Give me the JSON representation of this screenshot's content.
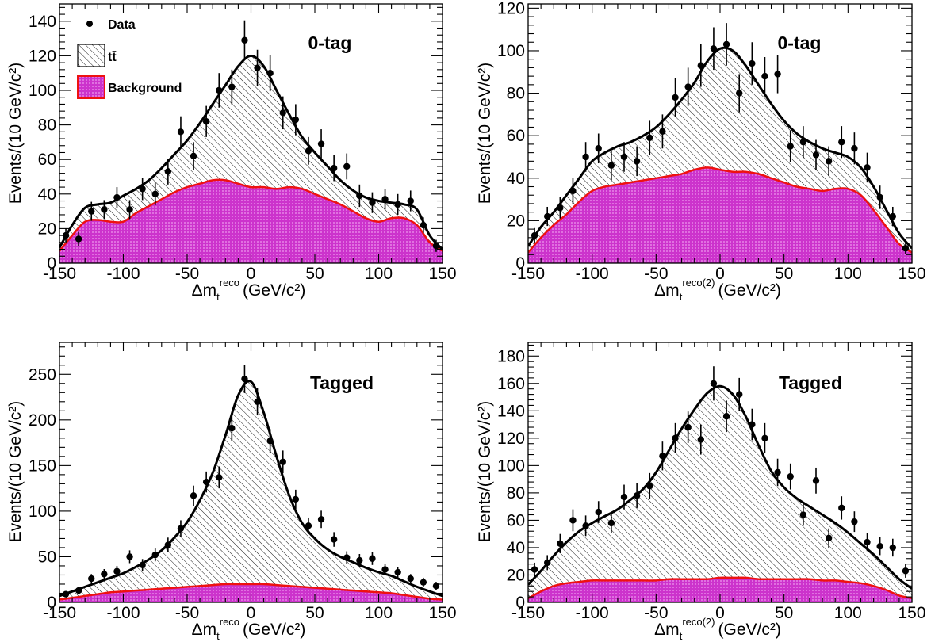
{
  "legend": {
    "data_label": "Data",
    "signal_label": "tt̄",
    "background_label": "Background"
  },
  "colors": {
    "background_fill": "#cc33cc",
    "background_line": "#ee1111",
    "signal_line": "#000000",
    "hatch": "#000000"
  },
  "chart_data": [
    {
      "type": "scatter",
      "panel": "top-left",
      "tag": "0-tag",
      "ylabel": "Events/(10 GeV/c²)",
      "xlabel_main": "Δm",
      "xlabel_sub": "t",
      "xlabel_sup": "reco",
      "xlabel_unit": "(GeV/c²)",
      "xlim": [
        -150,
        150
      ],
      "ylim": [
        0,
        150
      ],
      "xticks": [
        -150,
        -100,
        -50,
        0,
        50,
        100,
        150
      ],
      "yticks": [
        0,
        20,
        40,
        60,
        80,
        100,
        120,
        140
      ],
      "legend_position": "top-left",
      "data": {
        "x": [
          -145,
          -135,
          -125,
          -115,
          -105,
          -95,
          -85,
          -75,
          -65,
          -55,
          -45,
          -35,
          -25,
          -15,
          -5,
          5,
          15,
          25,
          35,
          45,
          55,
          65,
          75,
          85,
          95,
          105,
          115,
          125,
          135,
          145
        ],
        "y": [
          16,
          14,
          30,
          31,
          38,
          31,
          43,
          40,
          53,
          76,
          62,
          82,
          100,
          102,
          129,
          113,
          110,
          87,
          83,
          65,
          69,
          55,
          56,
          39,
          35,
          37,
          34,
          36,
          22,
          10
        ],
        "yerr": [
          4,
          4,
          5.5,
          5.5,
          6,
          5.5,
          6.5,
          6.5,
          7.5,
          9,
          8,
          9,
          10,
          10,
          11.5,
          10.5,
          10.5,
          9.5,
          9,
          8,
          8.5,
          7.5,
          7.5,
          6.5,
          6,
          6,
          6,
          6,
          4.5,
          3.5
        ]
      },
      "total_curve": {
        "x": [
          -150,
          -140,
          -130,
          -120,
          -110,
          -100,
          -90,
          -80,
          -70,
          -60,
          -50,
          -40,
          -30,
          -20,
          -10,
          0,
          10,
          20,
          30,
          40,
          50,
          60,
          70,
          80,
          90,
          100,
          110,
          120,
          130,
          140,
          150
        ],
        "y": [
          9,
          22,
          32,
          34,
          35,
          39,
          43,
          48,
          55,
          63,
          71,
          81,
          92,
          103,
          114,
          120,
          114,
          100,
          86,
          73,
          64,
          56,
          48,
          42,
          38,
          36,
          35,
          34,
          31,
          16,
          8
        ]
      },
      "background_curve": {
        "x": [
          -150,
          -140,
          -130,
          -120,
          -110,
          -100,
          -90,
          -80,
          -70,
          -60,
          -50,
          -40,
          -30,
          -20,
          -10,
          0,
          10,
          20,
          30,
          40,
          50,
          60,
          70,
          80,
          90,
          100,
          110,
          120,
          130,
          140,
          150
        ],
        "y": [
          7,
          16,
          24,
          25,
          24,
          24,
          29,
          33,
          37,
          41,
          44,
          46,
          48,
          48,
          46,
          44,
          44,
          43,
          44,
          43,
          40,
          37,
          34,
          30,
          26,
          24,
          26,
          26,
          22,
          12,
          7
        ]
      }
    },
    {
      "type": "scatter",
      "panel": "top-right",
      "tag": "0-tag",
      "ylabel": "Events/(10 GeV/c²)",
      "xlabel_main": "Δm",
      "xlabel_sub": "t",
      "xlabel_sup": "reco(2)",
      "xlabel_unit": "(GeV/c²)",
      "xlim": [
        -150,
        150
      ],
      "ylim": [
        0,
        122
      ],
      "xticks": [
        -150,
        -100,
        -50,
        0,
        50,
        100,
        150
      ],
      "yticks": [
        0,
        20,
        40,
        60,
        80,
        100,
        120
      ],
      "data": {
        "x": [
          -145,
          -135,
          -125,
          -115,
          -105,
          -95,
          -85,
          -75,
          -65,
          -55,
          -45,
          -35,
          -25,
          -15,
          -5,
          5,
          15,
          25,
          35,
          45,
          55,
          65,
          75,
          85,
          95,
          105,
          115,
          125,
          135,
          145
        ],
        "y": [
          13,
          22,
          26,
          34,
          50,
          54,
          46,
          50,
          48,
          59,
          62,
          78,
          83,
          93,
          101,
          103,
          80,
          94,
          88,
          89,
          55,
          57,
          51,
          48,
          57,
          54,
          45,
          31,
          22,
          7
        ],
        "yerr": [
          3.5,
          4.5,
          5,
          6,
          7,
          7,
          7,
          7,
          7,
          8,
          8,
          9,
          9,
          10,
          10,
          10,
          9,
          10,
          9,
          9,
          7.5,
          7.5,
          7,
          7,
          7.5,
          7.5,
          7,
          5.5,
          4.5,
          2.5
        ]
      },
      "total_curve": {
        "x": [
          -150,
          -140,
          -130,
          -120,
          -110,
          -100,
          -90,
          -80,
          -70,
          -60,
          -50,
          -40,
          -30,
          -20,
          -10,
          0,
          10,
          20,
          30,
          40,
          50,
          60,
          70,
          80,
          90,
          100,
          110,
          120,
          130,
          140,
          150
        ],
        "y": [
          8,
          17,
          24,
          32,
          40,
          48,
          52,
          55,
          57,
          60,
          64,
          70,
          77,
          85,
          95,
          101,
          100,
          93,
          84,
          75,
          67,
          61,
          57,
          54,
          52,
          50,
          45,
          36,
          25,
          14,
          7
        ]
      },
      "background_curve": {
        "x": [
          -150,
          -140,
          -130,
          -120,
          -110,
          -100,
          -90,
          -80,
          -70,
          -60,
          -50,
          -40,
          -30,
          -20,
          -10,
          0,
          10,
          20,
          30,
          40,
          50,
          60,
          70,
          80,
          90,
          100,
          110,
          120,
          130,
          140,
          150
        ],
        "y": [
          5,
          12,
          18,
          23,
          29,
          34,
          36,
          37,
          38,
          39,
          40,
          41,
          42,
          44,
          45,
          44,
          43,
          43,
          42,
          40,
          38,
          36,
          35,
          34,
          35,
          35,
          32,
          25,
          17,
          9,
          5
        ]
      }
    },
    {
      "type": "scatter",
      "panel": "bottom-left",
      "tag": "Tagged",
      "ylabel": "Events/(10 GeV/c²)",
      "xlabel_main": "Δm",
      "xlabel_sub": "t",
      "xlabel_sup": "reco",
      "xlabel_unit": "(GeV/c²)",
      "xlim": [
        -150,
        150
      ],
      "ylim": [
        0,
        285
      ],
      "xticks": [
        -150,
        -100,
        -50,
        0,
        50,
        100,
        150
      ],
      "yticks": [
        0,
        50,
        100,
        150,
        200,
        250
      ],
      "data": {
        "x": [
          -145,
          -135,
          -125,
          -115,
          -105,
          -95,
          -85,
          -75,
          -65,
          -55,
          -45,
          -35,
          -25,
          -15,
          -5,
          5,
          15,
          25,
          35,
          45,
          55,
          65,
          75,
          85,
          95,
          105,
          115,
          125,
          135,
          145
        ],
        "y": [
          9,
          13,
          26,
          31,
          34,
          50,
          41,
          52,
          63,
          81,
          117,
          132,
          137,
          191,
          245,
          220,
          177,
          154,
          113,
          84,
          91,
          69,
          49,
          46,
          48,
          36,
          33,
          26,
          22,
          18
        ],
        "yerr": [
          3,
          3.5,
          5,
          5.5,
          6,
          7,
          6.5,
          7,
          8,
          9,
          11,
          11.5,
          12,
          14,
          15.5,
          15,
          13,
          12.5,
          10.5,
          9,
          9.5,
          8,
          7,
          7,
          7,
          6,
          6,
          5,
          5,
          4.5
        ]
      },
      "total_curve": {
        "x": [
          -150,
          -140,
          -130,
          -120,
          -110,
          -100,
          -90,
          -80,
          -70,
          -60,
          -50,
          -40,
          -30,
          -20,
          -10,
          0,
          10,
          20,
          30,
          40,
          50,
          60,
          70,
          80,
          90,
          100,
          110,
          120,
          130,
          140,
          150
        ],
        "y": [
          7,
          12,
          17,
          22,
          27,
          32,
          39,
          47,
          57,
          71,
          88,
          112,
          142,
          183,
          227,
          242,
          208,
          160,
          117,
          87,
          70,
          58,
          50,
          44,
          38,
          33,
          29,
          23,
          17,
          12,
          7
        ]
      },
      "background_curve": {
        "x": [
          -150,
          -140,
          -130,
          -120,
          -110,
          -100,
          -90,
          -80,
          -70,
          -60,
          -50,
          -40,
          -30,
          -20,
          -10,
          0,
          10,
          20,
          30,
          40,
          50,
          60,
          70,
          80,
          90,
          100,
          110,
          120,
          130,
          140,
          150
        ],
        "y": [
          3,
          5,
          7,
          9,
          11,
          12,
          13,
          14,
          15,
          16,
          17,
          18,
          19,
          20,
          20,
          20,
          20,
          19,
          18,
          17,
          16,
          15,
          14,
          13,
          12,
          11,
          10,
          8,
          6,
          4,
          3
        ]
      }
    },
    {
      "type": "scatter",
      "panel": "bottom-right",
      "tag": "Tagged",
      "ylabel": "Events/(10 GeV/c²)",
      "xlabel_main": "Δm",
      "xlabel_sub": "t",
      "xlabel_sup": "reco(2)",
      "xlabel_unit": "(GeV/c²)",
      "xlim": [
        -150,
        150
      ],
      "ylim": [
        0,
        190
      ],
      "xticks": [
        -150,
        -100,
        -50,
        0,
        50,
        100,
        150
      ],
      "yticks": [
        0,
        20,
        40,
        60,
        80,
        100,
        120,
        140,
        160,
        180
      ],
      "data": {
        "x": [
          -145,
          -135,
          -125,
          -115,
          -105,
          -95,
          -85,
          -75,
          -65,
          -55,
          -45,
          -35,
          -25,
          -15,
          -5,
          5,
          15,
          25,
          35,
          45,
          55,
          65,
          75,
          85,
          95,
          105,
          115,
          125,
          135,
          145
        ],
        "y": [
          24,
          29,
          43,
          60,
          56,
          66,
          58,
          77,
          78,
          85,
          107,
          120,
          128,
          119,
          160,
          136,
          152,
          130,
          120,
          95,
          92,
          64,
          89,
          47,
          69,
          59,
          44,
          41,
          40,
          23
        ],
        "yerr": [
          5,
          5.5,
          7,
          8,
          7.5,
          8,
          7.5,
          9,
          9,
          9.5,
          10.5,
          11,
          11.5,
          11,
          12.5,
          11.5,
          12,
          11.5,
          11,
          10,
          9.5,
          8,
          9.5,
          7,
          8.5,
          7.5,
          6.5,
          6.5,
          6.5,
          5
        ]
      },
      "total_curve": {
        "x": [
          -150,
          -140,
          -130,
          -120,
          -110,
          -100,
          -90,
          -80,
          -70,
          -60,
          -50,
          -40,
          -30,
          -20,
          -10,
          0,
          10,
          20,
          30,
          40,
          50,
          60,
          70,
          80,
          90,
          100,
          110,
          120,
          130,
          140,
          150
        ],
        "y": [
          13,
          23,
          34,
          44,
          52,
          58,
          63,
          68,
          75,
          83,
          95,
          111,
          127,
          141,
          153,
          158,
          152,
          136,
          115,
          96,
          84,
          76,
          70,
          64,
          58,
          51,
          43,
          35,
          26,
          17,
          10
        ]
      },
      "background_curve": {
        "x": [
          -150,
          -140,
          -130,
          -120,
          -110,
          -100,
          -90,
          -80,
          -70,
          -60,
          -50,
          -40,
          -30,
          -20,
          -10,
          0,
          10,
          20,
          30,
          40,
          50,
          60,
          70,
          80,
          90,
          100,
          110,
          120,
          130,
          140,
          150
        ],
        "y": [
          3,
          8,
          12,
          14,
          15,
          16,
          16,
          16,
          16,
          16,
          16,
          17,
          17,
          17,
          17,
          18,
          18,
          18,
          17,
          17,
          17,
          17,
          17,
          16,
          16,
          15,
          14,
          12,
          9,
          5,
          3
        ]
      }
    }
  ]
}
